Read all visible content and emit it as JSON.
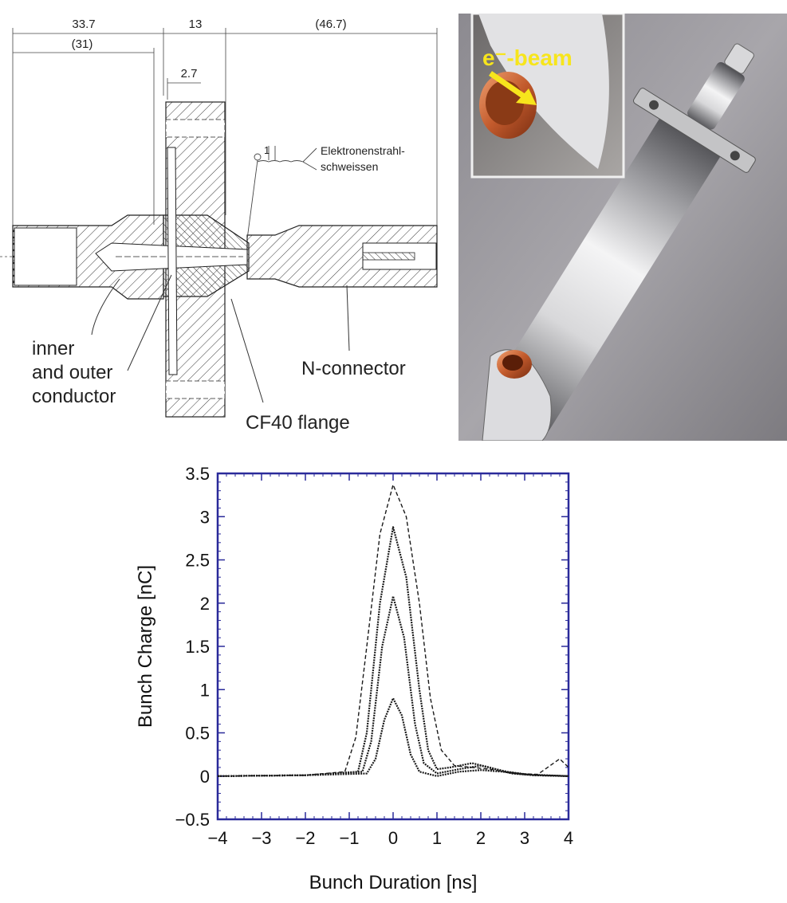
{
  "drawing": {
    "dimensions": {
      "total_left": "33.7",
      "flange": "13",
      "right": "(46.7)",
      "sub_left": "(31)",
      "gap": "2.7"
    },
    "weld": {
      "number": "1",
      "label_line1": "Elektronenstrahl-",
      "label_line2": "schweissen"
    },
    "labels": {
      "inner_line1": "inner",
      "inner_line2": "and outer",
      "inner_line3": "conductor",
      "connector": "N-connector",
      "flange": "CF40 flange"
    }
  },
  "photo": {
    "inset_label": "e⁻-beam"
  },
  "chart_data": {
    "type": "line",
    "xlabel": "Bunch Duration [ns]",
    "ylabel": "Bunch Charge [nC]",
    "xlim": [
      -4,
      4
    ],
    "ylim": [
      -0.5,
      3.5
    ],
    "xticks": [
      -4,
      -3,
      -2,
      -1,
      0,
      1,
      2,
      3,
      4
    ],
    "yticks": [
      -0.5,
      0,
      0.5,
      1,
      1.5,
      2,
      2.5,
      3,
      3.5
    ],
    "xtick_labels": [
      "−4",
      "−3",
      "−2",
      "−1",
      "0",
      "1",
      "2",
      "3",
      "4"
    ],
    "ytick_labels": [
      "−0.5",
      "0",
      "0.5",
      "1",
      "1.5",
      "2",
      "2.5",
      "3",
      "3.5"
    ],
    "grid": false,
    "series": [
      {
        "style": "dashed",
        "x": [
          -4,
          -2,
          -1.1,
          -0.85,
          -0.6,
          -0.3,
          0,
          0.3,
          0.6,
          0.85,
          1.1,
          1.4,
          1.8,
          2.2,
          2.8,
          3.3,
          3.8,
          4
        ],
        "y": [
          0,
          0.01,
          0.05,
          0.45,
          1.5,
          2.8,
          3.37,
          3.0,
          2.0,
          0.9,
          0.3,
          0.12,
          0.1,
          0.08,
          0.03,
          0.02,
          0.2,
          0.1
        ]
      },
      {
        "style": "solid",
        "x": [
          -4,
          -2,
          -0.8,
          -0.6,
          -0.3,
          0,
          0.3,
          0.6,
          0.8,
          1.0,
          1.3,
          1.8,
          2.2,
          2.7,
          3.2,
          4
        ],
        "y": [
          0,
          0.01,
          0.05,
          0.5,
          2.0,
          2.88,
          2.3,
          1.0,
          0.3,
          0.08,
          0.1,
          0.15,
          0.1,
          0.03,
          0.01,
          0.0
        ]
      },
      {
        "style": "solid",
        "x": [
          -4,
          -2,
          -0.7,
          -0.5,
          -0.25,
          0,
          0.25,
          0.5,
          0.7,
          1.0,
          1.5,
          2.0,
          2.6,
          3.2,
          4
        ],
        "y": [
          0,
          0.01,
          0.05,
          0.4,
          1.5,
          2.08,
          1.6,
          0.6,
          0.15,
          0.03,
          0.08,
          0.12,
          0.05,
          0.01,
          0.0
        ]
      },
      {
        "style": "solid",
        "x": [
          -4,
          -2,
          -0.6,
          -0.4,
          -0.2,
          0,
          0.2,
          0.4,
          0.6,
          1.0,
          1.5,
          2.0,
          2.5,
          3.0,
          4
        ],
        "y": [
          0,
          0.01,
          0.03,
          0.2,
          0.65,
          0.9,
          0.7,
          0.25,
          0.05,
          0.0,
          0.05,
          0.07,
          0.05,
          0.02,
          0.0
        ]
      }
    ]
  }
}
